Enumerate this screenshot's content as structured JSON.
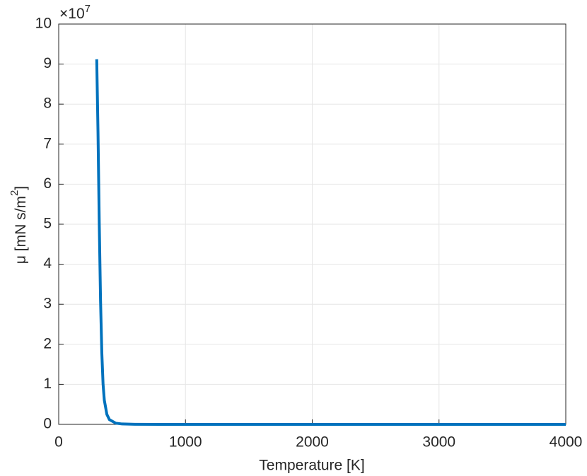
{
  "chart_data": {
    "type": "line",
    "xlabel": "Temperature [K]",
    "ylabel": {
      "text": "μ [mN s/m",
      "sup": "2",
      "end": "]"
    },
    "y_multiplier": {
      "base": "×10",
      "exponent": "7"
    },
    "x": [
      300,
      310,
      320,
      330,
      340,
      350,
      360,
      380,
      400,
      450,
      500,
      600,
      800,
      1000,
      1500,
      2000,
      3000,
      4000
    ],
    "series": [
      {
        "color": "#0072bd",
        "values": [
          9.12,
          7.3,
          5.0,
          3.1,
          1.8,
          1.0,
          0.6,
          0.25,
          0.12,
          0.03,
          0.01,
          0.002,
          0,
          0,
          0,
          0,
          0,
          0
        ]
      }
    ],
    "xlim": [
      0,
      4000
    ],
    "xticks": [
      0,
      1000,
      2000,
      3000,
      4000
    ],
    "ylim": [
      0,
      10
    ],
    "yticks": [
      0,
      1,
      2,
      3,
      4,
      5,
      6,
      7,
      8,
      9,
      10
    ],
    "grid": true
  }
}
